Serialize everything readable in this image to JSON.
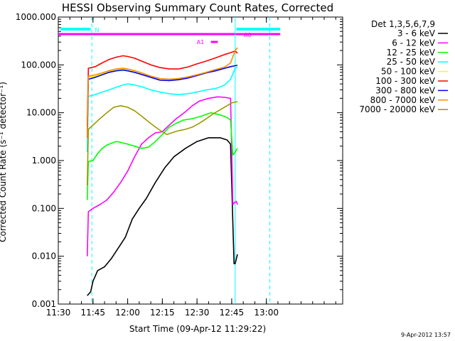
{
  "chart_data": {
    "type": "line",
    "title": "HESSI Observing Summary Count Rates, Corrected",
    "xlabel": "Start Time (09-Apr-12 11:29:22)",
    "ylabel": "Corrected Count Rate (s⁻¹ detector⁻¹)",
    "yscale": "log",
    "ylim": [
      0.001,
      1000
    ],
    "xlim_min": [
      -30,
      93
    ],
    "x_ticks": [
      {
        "t": -30,
        "label": "11:30"
      },
      {
        "t": -15,
        "label": "11:45"
      },
      {
        "t": 0,
        "label": "12:00"
      },
      {
        "t": 15,
        "label": "12:15"
      },
      {
        "t": 30,
        "label": "12:30"
      },
      {
        "t": 45,
        "label": "12:45"
      },
      {
        "t": 60,
        "label": "13:00"
      }
    ],
    "y_ticks": [
      {
        "v": 1000,
        "label": "1000.000"
      },
      {
        "v": 100,
        "label": "100.000"
      },
      {
        "v": 10,
        "label": "10.000"
      },
      {
        "v": 1,
        "label": "1.000"
      },
      {
        "v": 0.1,
        "label": "0.100"
      },
      {
        "v": 0.01,
        "label": "0.010"
      },
      {
        "v": 0.001,
        "label": "0.001"
      }
    ],
    "legend_title": "Det 1,3,5,6,7,9",
    "series": [
      {
        "name": "3 - 6 keV",
        "color": "#000000",
        "t": [
          -17.5,
          -16,
          -15,
          -13,
          -10,
          -7,
          -4,
          -1,
          2,
          5,
          8,
          12,
          16,
          20,
          25,
          30,
          35,
          40,
          43,
          44.5,
          46,
          46.5,
          47.5
        ],
        "values": [
          0.0015,
          0.0018,
          0.003,
          0.005,
          0.006,
          0.009,
          0.015,
          0.025,
          0.06,
          0.1,
          0.16,
          0.35,
          0.7,
          1.2,
          1.8,
          2.5,
          3.0,
          3.0,
          2.7,
          2.2,
          0.007,
          0.007,
          0.011
        ]
      },
      {
        "name": "6 - 12 keV",
        "color": "#ff00ff",
        "t": [
          -17.5,
          -17,
          -15,
          -12,
          -9,
          -6,
          -3,
          0,
          3,
          6,
          9,
          12,
          15,
          18,
          21,
          25,
          28,
          31,
          35,
          39,
          42,
          44.5,
          45.5,
          46,
          47,
          47.5
        ],
        "values": [
          0.01,
          0.085,
          0.1,
          0.12,
          0.15,
          0.22,
          0.35,
          0.6,
          1.2,
          2.2,
          3.0,
          3.8,
          4.0,
          5.5,
          7.5,
          10.5,
          14.0,
          17.5,
          20.0,
          21.5,
          21.0,
          20.0,
          0.12,
          0.13,
          0.14,
          0.12
        ]
      },
      {
        "name": "12 - 25 keV",
        "color": "#00ff00",
        "t": [
          -17.5,
          -17,
          -15,
          -13,
          -11,
          -9,
          -7,
          -5,
          -3,
          0,
          3,
          6,
          9,
          12,
          15,
          18,
          21,
          24,
          28,
          32,
          36,
          40,
          43,
          44.5,
          45.5,
          46.5,
          47.5
        ],
        "values": [
          0.15,
          0.95,
          1.0,
          1.4,
          1.8,
          2.1,
          2.3,
          2.5,
          2.4,
          2.2,
          2.0,
          1.8,
          1.9,
          2.5,
          3.5,
          5.0,
          6.0,
          7.0,
          7.5,
          8.5,
          10.0,
          9.0,
          8.0,
          7.0,
          1.3,
          1.5,
          1.8
        ]
      },
      {
        "name": "25 - 50 keV",
        "color": "#00ffff",
        "t": [
          -17.5,
          -17,
          -14,
          -11,
          -8,
          -5,
          -2,
          0,
          3,
          6,
          10,
          14,
          18,
          22,
          26,
          30,
          34,
          38,
          42,
          44.5,
          45.5,
          46.5,
          47.5
        ],
        "values": [
          1.5,
          22,
          24,
          27,
          30,
          34,
          38,
          40,
          38,
          35,
          30,
          27,
          25,
          24,
          25,
          27,
          30,
          32,
          38,
          50,
          65,
          85,
          90
        ]
      },
      {
        "name": "50 - 100 keV",
        "color": "#ffff00",
        "t": [
          -17.5,
          -17,
          -14,
          -11,
          -8,
          -5,
          -2,
          0,
          3,
          6,
          10,
          14,
          18,
          22,
          26,
          30,
          34,
          38,
          42,
          44.5,
          46.5,
          47.5
        ],
        "values": [
          4,
          55,
          58,
          65,
          72,
          78,
          82,
          80,
          75,
          68,
          58,
          52,
          50,
          51,
          55,
          62,
          70,
          78,
          85,
          90,
          95,
          100
        ]
      },
      {
        "name": "100 - 300 keV",
        "color": "#ff0000",
        "t": [
          -17.5,
          -17,
          -14,
          -11,
          -8,
          -5,
          -2,
          0,
          3,
          6,
          10,
          14,
          18,
          22,
          26,
          30,
          34,
          38,
          42,
          44.5,
          46.5,
          47.5
        ],
        "values": [
          5,
          85,
          92,
          110,
          130,
          145,
          155,
          150,
          138,
          120,
          100,
          88,
          82,
          82,
          90,
          105,
          120,
          140,
          165,
          180,
          195,
          175
        ]
      },
      {
        "name": "300 - 800 keV",
        "color": "#0000ff",
        "t": [
          -17.5,
          -17,
          -14,
          -11,
          -8,
          -5,
          -2,
          0,
          3,
          6,
          10,
          14,
          18,
          22,
          26,
          30,
          34,
          38,
          42,
          44.5,
          46.5,
          47.5
        ],
        "values": [
          3,
          50,
          55,
          62,
          70,
          75,
          78,
          75,
          70,
          63,
          55,
          48,
          47,
          49,
          53,
          60,
          68,
          75,
          85,
          92,
          96,
          98
        ]
      },
      {
        "name": "800 - 7000 keV",
        "color": "#ff8c00",
        "t": [
          -17.5,
          -17,
          -14,
          -11,
          -8,
          -5,
          -2,
          0,
          3,
          6,
          10,
          14,
          18,
          22,
          26,
          30,
          34,
          38,
          42,
          44.5,
          46.5,
          47.5
        ],
        "values": [
          3,
          58,
          62,
          68,
          76,
          82,
          85,
          82,
          76,
          68,
          58,
          52,
          50,
          52,
          56,
          62,
          70,
          80,
          90,
          110,
          200,
          230
        ]
      },
      {
        "name": "7000 - 20000 keV",
        "color": "#999900",
        "t": [
          -17.5,
          -17,
          -15,
          -12,
          -9,
          -6,
          -3,
          0,
          3,
          6,
          9,
          12,
          15,
          17,
          19,
          22,
          25,
          28,
          31,
          34,
          37,
          40,
          43,
          45,
          47.5
        ],
        "values": [
          0.3,
          4.5,
          5.5,
          7.5,
          10,
          13,
          14,
          13,
          11,
          8.5,
          6.5,
          5.0,
          4.0,
          3.5,
          3.8,
          4.2,
          4.5,
          5.0,
          6.0,
          7.5,
          9.5,
          11.5,
          14,
          16,
          17
        ]
      }
    ],
    "annotations": {
      "N_bar": {
        "label": "N",
        "t_start": -29,
        "t_end": -16,
        "color": "#00ffff"
      },
      "N_bar_right": {
        "t_start": 47,
        "t_end": 66,
        "color": "#00ffff"
      },
      "A0_bar": {
        "label": "A0",
        "t_start": -30,
        "t_end": 66,
        "color": "#ff00ff"
      },
      "A1_mark": {
        "label": "A1",
        "t_start": 36,
        "t_end": 39,
        "color": "#ff00ff"
      },
      "vlines": [
        {
          "t": -15.5,
          "style": "dashed",
          "color": "#00ffff"
        },
        {
          "t": 46.5,
          "style": "solid",
          "color": "#00ffff"
        },
        {
          "t": 61.5,
          "style": "dashed",
          "color": "#00ffff"
        }
      ]
    },
    "footer_date": "9-Apr-2012 13:57"
  }
}
